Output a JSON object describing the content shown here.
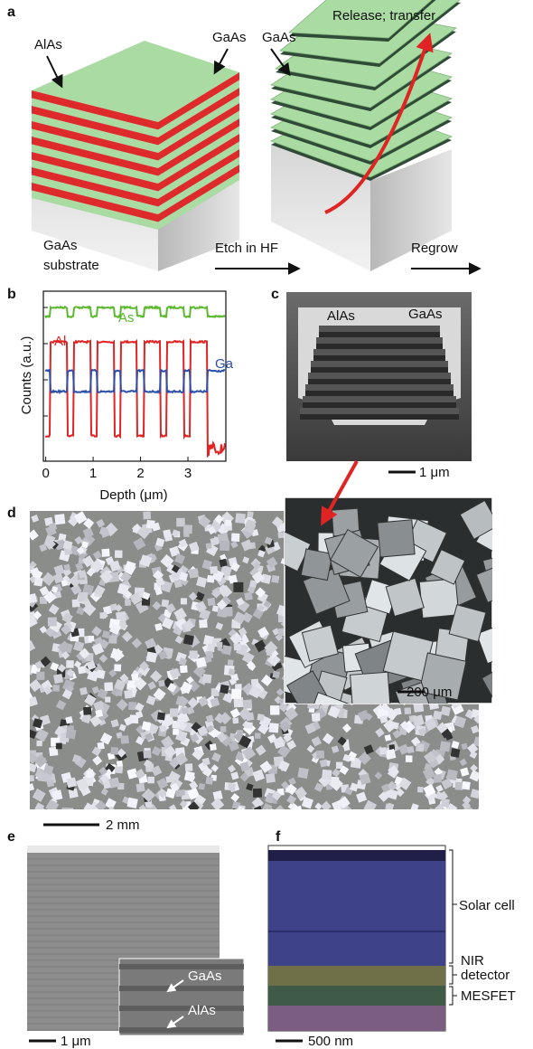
{
  "panel_labels": [
    "a",
    "b",
    "c",
    "d",
    "e",
    "f"
  ],
  "a": {
    "alas": "AlAs",
    "gaas": "GaAs",
    "substrate": [
      "GaAs",
      "substrate"
    ],
    "etch": "Etch in HF",
    "release": "Release; transfer",
    "regrow": "Regrow"
  },
  "b": {
    "type": "line",
    "x_label": "Depth (μm)",
    "y_label": "Counts (a.u.)",
    "xlim": [
      -0.05,
      3.8
    ],
    "xticks": [
      0,
      1,
      2,
      3
    ],
    "series": [
      {
        "name": "As",
        "color": "#5cb82e"
      },
      {
        "name": "Al",
        "color": "#e02424"
      },
      {
        "name": "Ga",
        "color": "#2d4fa8"
      }
    ]
  },
  "c": {
    "labels": [
      "AlAs",
      "GaAs"
    ],
    "scale_bar": "1 μm"
  },
  "d": {
    "scale_bar": "2 mm",
    "inset_scale_bar": "200 μm"
  },
  "e": {
    "labels": [
      "GaAs",
      "AlAs"
    ],
    "scale_bar": "1 μm"
  },
  "f": {
    "regions": [
      "Solar cell",
      [
        "NIR",
        "detector"
      ],
      "MESFET"
    ],
    "scale_bar": "500 nm"
  }
}
